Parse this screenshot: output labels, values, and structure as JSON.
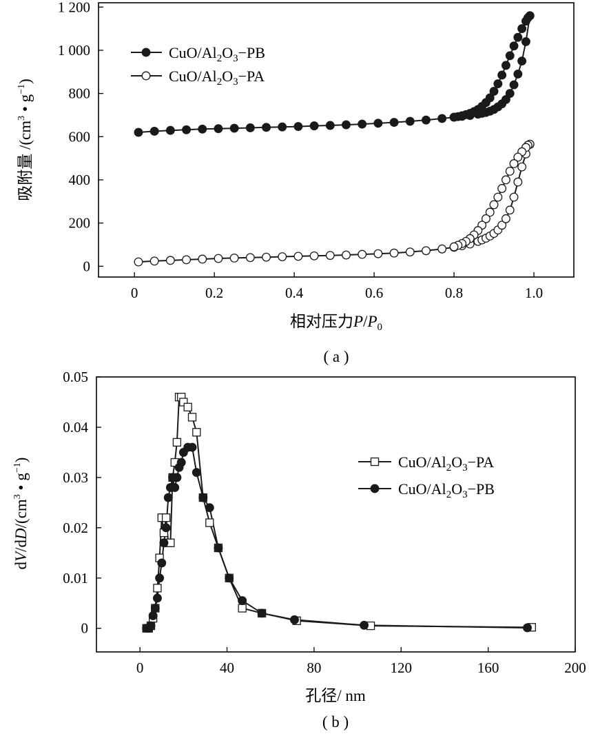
{
  "chart_data": [
    {
      "type": "scatter",
      "panel_label": "( a )",
      "xlabel_main": "相对压力",
      "xlabel_italic1": "P",
      "xlabel_sep": "/",
      "xlabel_italic2": "P",
      "xlabel_sub": "0",
      "ylabel_main": "吸附量 /(cm",
      "ylabel_sup1": "3",
      "ylabel_mid": " • g",
      "ylabel_sup2": "−1",
      "ylabel_end": ")",
      "xlim": [
        -0.09,
        1.1
      ],
      "ylim": [
        -50,
        1220
      ],
      "xticks": [
        0,
        0.2,
        0.4,
        0.6,
        0.8,
        1.0
      ],
      "xtick_labels": [
        "0",
        "0.2",
        "0.4",
        "0.6",
        "0.8",
        "1.0"
      ],
      "yticks": [
        0,
        200,
        400,
        600,
        800,
        1000,
        1200
      ],
      "ytick_labels": [
        "0",
        "200",
        "400",
        "600",
        "800",
        "1 000",
        "1 200"
      ],
      "grid": false,
      "legend_position": "top-left",
      "series": [
        {
          "name_prefix": "CuO/Al",
          "name_sub1": "2",
          "name_mid": "O",
          "name_sub2": "3",
          "name_suffix": "−PB",
          "marker": "filled-circle",
          "adsorption": {
            "x": [
              0.01,
              0.05,
              0.09,
              0.13,
              0.17,
              0.21,
              0.25,
              0.29,
              0.33,
              0.37,
              0.41,
              0.45,
              0.49,
              0.53,
              0.57,
              0.61,
              0.65,
              0.69,
              0.73,
              0.77,
              0.8,
              0.82,
              0.84,
              0.86,
              0.87,
              0.88,
              0.89,
              0.9,
              0.91,
              0.92,
              0.93,
              0.94,
              0.95,
              0.96,
              0.97,
              0.98,
              0.99
            ],
            "y": [
              620,
              625,
              629,
              632,
              635,
              637,
              639,
              641,
              643,
              645,
              647,
              650,
              652,
              655,
              658,
              662,
              666,
              671,
              677,
              684,
              690,
              694,
              698,
              704,
              708,
              712,
              718,
              726,
              738,
              752,
              772,
              800,
              840,
              890,
              950,
              1040,
              1160
            ]
          },
          "desorption": {
            "x": [
              0.99,
              0.985,
              0.98,
              0.97,
              0.96,
              0.95,
              0.94,
              0.93,
              0.92,
              0.91,
              0.9,
              0.89,
              0.88,
              0.87,
              0.86,
              0.85,
              0.84,
              0.83,
              0.82,
              0.81,
              0.8
            ],
            "y": [
              1160,
              1150,
              1135,
              1100,
              1060,
              1020,
              975,
              930,
              885,
              845,
              810,
              780,
              758,
              740,
              726,
              716,
              708,
              702,
              697,
              693,
              690
            ]
          }
        },
        {
          "name_prefix": "CuO/Al",
          "name_sub1": "2",
          "name_mid": "O",
          "name_sub2": "3",
          "name_suffix": "−PA",
          "marker": "open-circle",
          "adsorption": {
            "x": [
              0.01,
              0.05,
              0.09,
              0.13,
              0.17,
              0.21,
              0.25,
              0.29,
              0.33,
              0.37,
              0.41,
              0.45,
              0.49,
              0.53,
              0.57,
              0.61,
              0.65,
              0.69,
              0.73,
              0.77,
              0.8,
              0.82,
              0.84,
              0.86,
              0.87,
              0.88,
              0.89,
              0.9,
              0.91,
              0.92,
              0.93,
              0.94,
              0.95,
              0.96,
              0.97,
              0.98,
              0.99
            ],
            "y": [
              20,
              24,
              27,
              30,
              33,
              36,
              38,
              40,
              42,
              44,
              46,
              48,
              50,
              52,
              55,
              58,
              61,
              66,
              72,
              80,
              88,
              95,
              103,
              115,
              122,
              130,
              140,
              152,
              168,
              190,
              220,
              260,
              320,
              390,
              460,
              520,
              565
            ]
          },
          "desorption": {
            "x": [
              0.99,
              0.985,
              0.98,
              0.97,
              0.96,
              0.95,
              0.94,
              0.93,
              0.92,
              0.91,
              0.9,
              0.89,
              0.88,
              0.87,
              0.86,
              0.85,
              0.84,
              0.83,
              0.82,
              0.81,
              0.8
            ],
            "y": [
              565,
              560,
              550,
              530,
              505,
              475,
              440,
              400,
              360,
              320,
              285,
              250,
              220,
              190,
              165,
              145,
              128,
              115,
              105,
              97,
              90
            ]
          }
        }
      ]
    },
    {
      "type": "line",
      "panel_label": "( b )",
      "xlabel": "孔径/ nm",
      "ylabel_pre": "d",
      "ylabel_i1": "V",
      "ylabel_mid1": "/d",
      "ylabel_i2": "D",
      "ylabel_mid2": "/(cm",
      "ylabel_sup1": "3",
      "ylabel_mid3": " • g",
      "ylabel_sup2": "−1",
      "ylabel_end": ")",
      "xlim": [
        -20,
        200
      ],
      "ylim": [
        -0.0047,
        0.05
      ],
      "xticks": [
        0,
        40,
        80,
        120,
        160,
        200
      ],
      "xtick_labels": [
        "0",
        "40",
        "80",
        "120",
        "160",
        "200"
      ],
      "yticks": [
        0,
        0.01,
        0.02,
        0.03,
        0.04,
        0.05
      ],
      "ytick_labels": [
        "0",
        "0.01",
        "0.02",
        "0.03",
        "0.04",
        "0.05"
      ],
      "grid": false,
      "legend_position": "center-right",
      "series": [
        {
          "name_prefix": "CuO/Al",
          "name_sub1": "2",
          "name_mid": "O",
          "name_sub2": "3",
          "name_suffix": "−PA",
          "marker": "open-square",
          "x": [
            3,
            4,
            5,
            6,
            7,
            8,
            9,
            10,
            11,
            12,
            13,
            14,
            15,
            16,
            17,
            18,
            19,
            20,
            22,
            24,
            26,
            29,
            32,
            36,
            41,
            47,
            56,
            72,
            106,
            180
          ],
          "y": [
            0,
            0,
            0.0005,
            0.002,
            0.004,
            0.008,
            0.014,
            0.022,
            0.019,
            0.022,
            0.017,
            0.017,
            0.03,
            0.033,
            0.037,
            0.046,
            0.046,
            0.045,
            0.044,
            0.042,
            0.039,
            0.026,
            0.021,
            0.016,
            0.01,
            0.004,
            0.003,
            0.0015,
            0.0005,
            0.0002
          ]
        },
        {
          "name_prefix": "CuO/Al",
          "name_sub1": "2",
          "name_mid": "O",
          "name_sub2": "3",
          "name_suffix": "−PB",
          "marker": "filled-circle",
          "x": [
            3,
            4,
            5,
            6,
            7,
            8,
            9,
            10,
            11,
            12,
            13,
            14,
            15,
            16,
            17,
            18,
            19,
            20,
            22,
            24,
            26,
            29,
            32,
            36,
            41,
            47,
            56,
            71,
            103,
            178
          ],
          "y": [
            0,
            0,
            0.0005,
            0.0025,
            0.004,
            0.006,
            0.01,
            0.013,
            0.017,
            0.02,
            0.026,
            0.028,
            0.03,
            0.028,
            0.03,
            0.032,
            0.033,
            0.035,
            0.036,
            0.036,
            0.031,
            0.026,
            0.024,
            0.016,
            0.01,
            0.0055,
            0.003,
            0.0017,
            0.0006,
            0.0001
          ]
        }
      ]
    }
  ]
}
